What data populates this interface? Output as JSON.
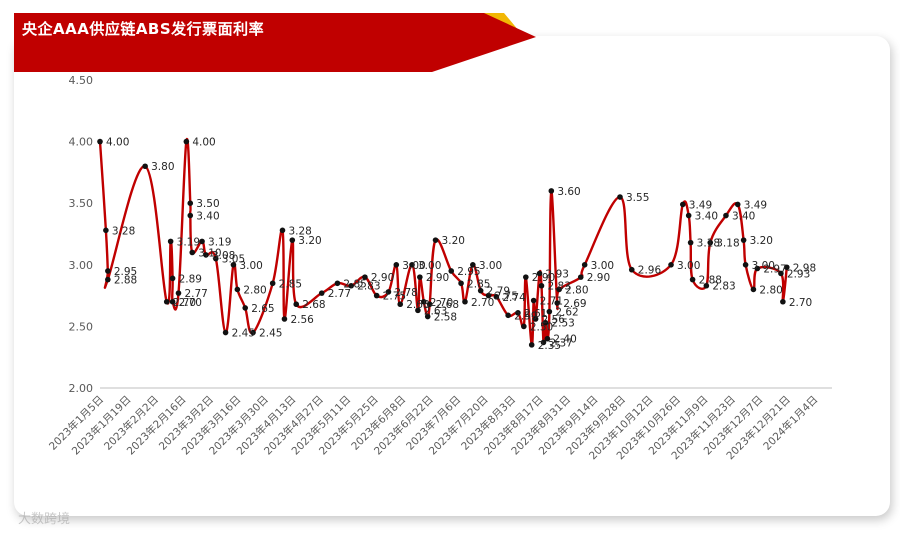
{
  "header": {
    "title": "央企AAA供应链ABS发行票面利率"
  },
  "colors": {
    "banner_red": "#c00000",
    "banner_gold": "#f2b705",
    "line": "#c00000",
    "marker": "#111111"
  },
  "watermark": {
    "text": "大数跨境"
  },
  "chart_data": {
    "type": "line",
    "title": "央企AAA供应链ABS发行票面利率",
    "xlabel": "",
    "ylabel": "",
    "ylim": [
      2.0,
      4.5
    ],
    "y_ticks": [
      "2.00",
      "2.50",
      "3.00",
      "3.50",
      "4.00",
      "4.50"
    ],
    "x_range": [
      "2023-01-05",
      "2024-01-11"
    ],
    "x_ticks": [
      {
        "date": "2023-01-05",
        "label": "2023年1月5日"
      },
      {
        "date": "2023-01-19",
        "label": "2023年1月19日"
      },
      {
        "date": "2023-02-02",
        "label": "2023年2月2日"
      },
      {
        "date": "2023-02-16",
        "label": "2023年2月16日"
      },
      {
        "date": "2023-03-02",
        "label": "2023年3月2日"
      },
      {
        "date": "2023-03-16",
        "label": "2023年3月16日"
      },
      {
        "date": "2023-03-30",
        "label": "2023年3月30日"
      },
      {
        "date": "2023-04-13",
        "label": "2023年4月13日"
      },
      {
        "date": "2023-04-27",
        "label": "2023年4月27日"
      },
      {
        "date": "2023-05-11",
        "label": "2023年5月11日"
      },
      {
        "date": "2023-05-25",
        "label": "2023年5月25日"
      },
      {
        "date": "2023-06-08",
        "label": "2023年6月8日"
      },
      {
        "date": "2023-06-22",
        "label": "2023年6月22日"
      },
      {
        "date": "2023-07-06",
        "label": "2023年7月6日"
      },
      {
        "date": "2023-07-20",
        "label": "2023年7月20日"
      },
      {
        "date": "2023-08-03",
        "label": "2023年8月3日"
      },
      {
        "date": "2023-08-17",
        "label": "2023年8月17日"
      },
      {
        "date": "2023-08-31",
        "label": "2023年8月31日"
      },
      {
        "date": "2023-09-14",
        "label": "2023年9月14日"
      },
      {
        "date": "2023-09-28",
        "label": "2023年9月28日"
      },
      {
        "date": "2023-10-12",
        "label": "2023年10月12日"
      },
      {
        "date": "2023-10-26",
        "label": "2023年10月26日"
      },
      {
        "date": "2023-11-09",
        "label": "2023年11月9日"
      },
      {
        "date": "2023-11-23",
        "label": "2023年11月23日"
      },
      {
        "date": "2023-12-07",
        "label": "2023年12月7日"
      },
      {
        "date": "2023-12-21",
        "label": "2023年12月21日"
      },
      {
        "date": "2024-01-04",
        "label": "2024年1月4日"
      }
    ],
    "grid": false,
    "legend": "none",
    "series": [
      {
        "points": [
          {
            "x": "2023-01-05",
            "y": 4.0,
            "label": "4.00"
          },
          {
            "x": "2023-01-08",
            "y": 3.28,
            "label": "3.28"
          },
          {
            "x": "2023-01-09",
            "y": 2.95,
            "label": "2.95"
          },
          {
            "x": "2023-01-09",
            "y": 2.88,
            "label": "2.88"
          },
          {
            "x": "2023-01-28",
            "y": 3.8,
            "label": "3.80"
          },
          {
            "x": "2023-02-08",
            "y": 2.7,
            "label": "2.70"
          },
          {
            "x": "2023-02-10",
            "y": 3.19,
            "label": "3.19"
          },
          {
            "x": "2023-02-11",
            "y": 2.89,
            "label": "2.89"
          },
          {
            "x": "2023-02-11",
            "y": 2.7,
            "label": "2.70"
          },
          {
            "x": "2023-02-14",
            "y": 2.77,
            "label": "2.77"
          },
          {
            "x": "2023-02-18",
            "y": 4.0,
            "label": "4.00"
          },
          {
            "x": "2023-02-20",
            "y": 3.5,
            "label": "3.50"
          },
          {
            "x": "2023-02-20",
            "y": 3.4,
            "label": "3.40"
          },
          {
            "x": "2023-02-21",
            "y": 3.1,
            "label": "3.10"
          },
          {
            "x": "2023-02-26",
            "y": 3.19,
            "label": "3.19"
          },
          {
            "x": "2023-02-28",
            "y": 3.08,
            "label": "3.08"
          },
          {
            "x": "2023-03-05",
            "y": 3.05,
            "label": "3.05"
          },
          {
            "x": "2023-03-10",
            "y": 2.45,
            "label": "2.45"
          },
          {
            "x": "2023-03-14",
            "y": 3.0,
            "label": "3.00"
          },
          {
            "x": "2023-03-16",
            "y": 2.8,
            "label": "2.80"
          },
          {
            "x": "2023-03-20",
            "y": 2.65,
            "label": "2.65"
          },
          {
            "x": "2023-03-24",
            "y": 2.45,
            "label": "2.45"
          },
          {
            "x": "2023-04-03",
            "y": 2.85,
            "label": "2.85"
          },
          {
            "x": "2023-04-08",
            "y": 3.28,
            "label": "3.28"
          },
          {
            "x": "2023-04-09",
            "y": 2.56,
            "label": "2.56"
          },
          {
            "x": "2023-04-13",
            "y": 3.2,
            "label": "3.20"
          },
          {
            "x": "2023-04-15",
            "y": 2.68,
            "label": "2.68"
          },
          {
            "x": "2023-04-28",
            "y": 2.77,
            "label": "2.77"
          },
          {
            "x": "2023-05-06",
            "y": 2.85,
            "label": "2.85"
          },
          {
            "x": "2023-05-13",
            "y": 2.83,
            "label": "2.83"
          },
          {
            "x": "2023-05-20",
            "y": 2.9,
            "label": "2.90"
          },
          {
            "x": "2023-05-26",
            "y": 2.75,
            "label": "2.75"
          },
          {
            "x": "2023-06-01",
            "y": 2.78,
            "label": "2.78"
          },
          {
            "x": "2023-06-05",
            "y": 3.0,
            "label": "3.00"
          },
          {
            "x": "2023-06-07",
            "y": 2.68,
            "label": "2.68"
          },
          {
            "x": "2023-06-13",
            "y": 3.0,
            "label": "3.00"
          },
          {
            "x": "2023-06-16",
            "y": 2.63,
            "label": "2.63"
          },
          {
            "x": "2023-06-17",
            "y": 2.9,
            "label": "2.90"
          },
          {
            "x": "2023-06-19",
            "y": 2.7,
            "label": "2.70"
          },
          {
            "x": "2023-06-21",
            "y": 2.58,
            "label": "2.58"
          },
          {
            "x": "2023-06-22",
            "y": 2.68,
            "label": "2.68"
          },
          {
            "x": "2023-06-25",
            "y": 3.2,
            "label": "3.20"
          },
          {
            "x": "2023-07-03",
            "y": 2.95,
            "label": "2.95"
          },
          {
            "x": "2023-07-08",
            "y": 2.85,
            "label": "2.85"
          },
          {
            "x": "2023-07-10",
            "y": 2.7,
            "label": "2.70"
          },
          {
            "x": "2023-07-14",
            "y": 3.0,
            "label": "3.00"
          },
          {
            "x": "2023-07-18",
            "y": 2.79,
            "label": "2.79"
          },
          {
            "x": "2023-07-22",
            "y": 2.75,
            "label": "2.75"
          },
          {
            "x": "2023-07-26",
            "y": 2.74,
            "label": "2.74"
          },
          {
            "x": "2023-08-01",
            "y": 2.59,
            "label": "2.59"
          },
          {
            "x": "2023-08-06",
            "y": 2.61,
            "label": "2.61"
          },
          {
            "x": "2023-08-09",
            "y": 2.5,
            "label": "2.50"
          },
          {
            "x": "2023-08-10",
            "y": 2.9,
            "label": "2.90"
          },
          {
            "x": "2023-08-13",
            "y": 2.35,
            "label": "2.35"
          },
          {
            "x": "2023-08-14",
            "y": 2.71,
            "label": "2.71"
          },
          {
            "x": "2023-08-15",
            "y": 2.56,
            "label": "2.56"
          },
          {
            "x": "2023-08-17",
            "y": 2.93,
            "label": "2.93"
          },
          {
            "x": "2023-08-18",
            "y": 2.83,
            "label": "2.83"
          },
          {
            "x": "2023-08-19",
            "y": 2.37,
            "label": "2.37"
          },
          {
            "x": "2023-08-20",
            "y": 2.53,
            "label": "2.53"
          },
          {
            "x": "2023-08-21",
            "y": 2.4,
            "label": "2.40"
          },
          {
            "x": "2023-08-22",
            "y": 2.62,
            "label": "2.62"
          },
          {
            "x": "2023-08-23",
            "y": 3.6,
            "label": "3.60"
          },
          {
            "x": "2023-08-26",
            "y": 2.69,
            "label": "2.69"
          },
          {
            "x": "2023-08-27",
            "y": 2.8,
            "label": "2.80"
          },
          {
            "x": "2023-09-07",
            "y": 2.9,
            "label": "2.90"
          },
          {
            "x": "2023-09-09",
            "y": 3.0,
            "label": "3.00"
          },
          {
            "x": "2023-09-27",
            "y": 3.55,
            "label": "3.55"
          },
          {
            "x": "2023-10-03",
            "y": 2.96,
            "label": "2.96"
          },
          {
            "x": "2023-10-23",
            "y": 3.0,
            "label": "3.00"
          },
          {
            "x": "2023-10-29",
            "y": 3.49,
            "label": "3.49"
          },
          {
            "x": "2023-11-01",
            "y": 3.4,
            "label": "3.40"
          },
          {
            "x": "2023-11-02",
            "y": 3.18,
            "label": "3.18"
          },
          {
            "x": "2023-11-03",
            "y": 2.88,
            "label": "2.88"
          },
          {
            "x": "2023-11-10",
            "y": 2.83,
            "label": "2.83"
          },
          {
            "x": "2023-11-12",
            "y": 3.18,
            "label": "3.18"
          },
          {
            "x": "2023-11-20",
            "y": 3.4,
            "label": "3.40"
          },
          {
            "x": "2023-11-26",
            "y": 3.49,
            "label": "3.49"
          },
          {
            "x": "2023-11-29",
            "y": 3.2,
            "label": "3.20"
          },
          {
            "x": "2023-11-30",
            "y": 3.0,
            "label": "3.00"
          },
          {
            "x": "2023-12-04",
            "y": 2.8,
            "label": "2.80"
          },
          {
            "x": "2023-12-06",
            "y": 2.97,
            "label": "2.97"
          },
          {
            "x": "2023-12-18",
            "y": 2.93,
            "label": "2.93"
          },
          {
            "x": "2023-12-19",
            "y": 2.7,
            "label": "2.70"
          },
          {
            "x": "2023-12-21",
            "y": 2.98,
            "label": "2.98"
          }
        ]
      }
    ]
  }
}
